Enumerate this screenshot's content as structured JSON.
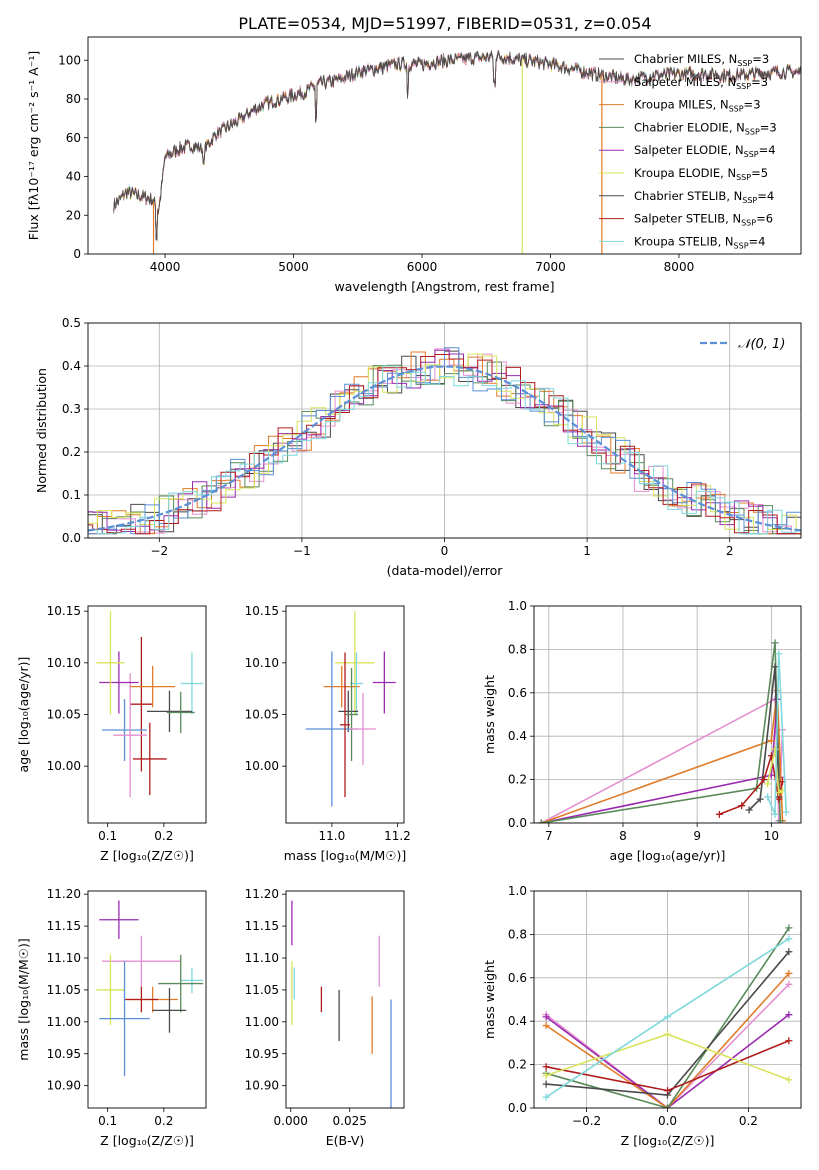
{
  "figure": {
    "title": "PLATE=0534, MJD=51997, FIBERID=0531, z=0.054"
  },
  "models": [
    {
      "name": "Chabrier MILES",
      "nssp": "3",
      "color": "#4a4a4a"
    },
    {
      "name": "Salpeter MILES",
      "nssp": "3",
      "color": "#e58fd0"
    },
    {
      "name": "Kroupa MILES",
      "nssp": "3",
      "color": "#e07b28"
    },
    {
      "name": "Chabrier ELODIE",
      "nssp": "3",
      "color": "#5a8a5a"
    },
    {
      "name": "Salpeter ELODIE",
      "nssp": "4",
      "color": "#9a2bb0"
    },
    {
      "name": "Kroupa ELODIE",
      "nssp": "5",
      "color": "#d8e35a"
    },
    {
      "name": "Chabrier STELIB",
      "nssp": "4",
      "color": "#4a4a4a"
    },
    {
      "name": "Salpeter STELIB",
      "nssp": "6",
      "color": "#b01c1c"
    },
    {
      "name": "Kroupa STELIB",
      "nssp": "4",
      "color": "#7fd8dc"
    }
  ],
  "chart_data": [
    {
      "id": "spectrum",
      "type": "line",
      "xlabel": "wavelength [Angstrom, rest frame]",
      "ylabel": "Flux [fλ10⁻¹⁷ erg cm⁻² s⁻¹ A⁻¹]",
      "xlim": [
        3400,
        8950
      ],
      "ylim": [
        0,
        112
      ],
      "xticks": [
        4000,
        5000,
        6000,
        7000,
        8000
      ],
      "yticks": [
        0,
        20,
        40,
        60,
        80,
        100
      ],
      "legend": "right",
      "grid": false,
      "continuum": {
        "x": [
          3600,
          3700,
          3800,
          3900,
          3950,
          4000,
          4100,
          4200,
          4300,
          4400,
          4500,
          4600,
          4700,
          4800,
          4900,
          5000,
          5100,
          5200,
          5300,
          5400,
          5500,
          5600,
          5800,
          6000,
          6200,
          6400,
          6600,
          6800,
          7000,
          7200,
          7400,
          7600,
          7800,
          8000,
          8200,
          8400,
          8600,
          8800,
          8950
        ],
        "y": [
          25,
          32,
          30,
          28,
          22,
          50,
          54,
          56,
          54,
          62,
          66,
          70,
          75,
          78,
          80,
          82,
          84,
          88,
          89,
          91,
          94,
          95,
          98,
          98,
          100,
          101,
          102,
          100,
          98,
          95,
          92,
          90,
          92,
          93,
          93,
          92,
          93,
          94,
          94
        ]
      },
      "dips": [
        {
          "x": 3933,
          "y": 5
        },
        {
          "x": 4300,
          "y": 40
        },
        {
          "x": 5175,
          "y": 65
        },
        {
          "x": 5890,
          "y": 80
        },
        {
          "x": 6565,
          "y": 85
        }
      ],
      "dropouts": [
        3910,
        6780,
        7400
      ]
    },
    {
      "id": "residuals",
      "type": "histogram",
      "xlabel": "(data-model)/error",
      "ylabel": "Normed distribution",
      "xlim": [
        -2.5,
        2.5
      ],
      "ylim": [
        0,
        0.5
      ],
      "xticks": [
        -2,
        -1,
        0,
        1,
        2
      ],
      "yticks": [
        0.0,
        0.1,
        0.2,
        0.3,
        0.4,
        0.5
      ],
      "grid": true,
      "legend": "top-right",
      "reference": {
        "label": "𝒩(0, 1)",
        "mean": 0,
        "sigma": 1,
        "color": "#5b8fd6"
      }
    },
    {
      "id": "age-vs-Z",
      "type": "scatter",
      "xlabel": "Z [log₁₀(Z/Z☉)]",
      "ylabel": "age  [log₁₀(age/yr)]",
      "xlim": [
        0.065,
        0.275
      ],
      "ylim": [
        9.945,
        10.155
      ],
      "xticks": [
        0.1,
        0.2
      ],
      "yticks": [
        10.0,
        10.05,
        10.1,
        10.15
      ],
      "points": [
        {
          "x": 0.16,
          "xerr": 0.02,
          "y": 10.06,
          "yerr": 0.065,
          "color": "#b01c1c"
        },
        {
          "x": 0.13,
          "xerr": 0.04,
          "y": 10.035,
          "yerr": 0.03,
          "color": "#5b8fd6"
        },
        {
          "x": 0.14,
          "xerr": 0.03,
          "y": 10.03,
          "yerr": 0.06,
          "color": "#e58fd0"
        },
        {
          "x": 0.25,
          "xerr": 0.02,
          "y": 10.08,
          "yerr": 0.03,
          "color": "#7fd8dc"
        },
        {
          "x": 0.21,
          "xerr": 0.04,
          "y": 10.053,
          "yerr": 0.02,
          "color": "#4a4a4a"
        },
        {
          "x": 0.23,
          "xerr": 0.025,
          "y": 10.052,
          "yerr": 0.02,
          "color": "#5a8a5a"
        },
        {
          "x": 0.12,
          "xerr": 0.035,
          "y": 10.081,
          "yerr": 0.03,
          "color": "#9a2bb0"
        },
        {
          "x": 0.105,
          "xerr": 0.025,
          "y": 10.1,
          "yerr": 0.05,
          "color": "#d8e35a"
        },
        {
          "x": 0.18,
          "xerr": 0.04,
          "y": 10.077,
          "yerr": 0.02,
          "color": "#e07b28"
        },
        {
          "x": 0.175,
          "xerr": 0.03,
          "y": 10.007,
          "yerr": 0.035,
          "color": "#b01c1c"
        }
      ]
    },
    {
      "id": "age-vs-mass",
      "type": "scatter",
      "xlabel": "mass [log₁₀(M/M☉)]",
      "ylabel": "",
      "xlim": [
        10.86,
        11.22
      ],
      "ylim": [
        9.945,
        10.155
      ],
      "xticks": [
        11.0,
        11.2
      ],
      "yticks": [
        10.0,
        10.05,
        10.1,
        10.15
      ],
      "points": [
        {
          "x": 11.07,
          "xerr": 0.06,
          "y": 10.1,
          "yerr": 0.05,
          "color": "#d8e35a"
        },
        {
          "x": 11.16,
          "xerr": 0.035,
          "y": 10.081,
          "yerr": 0.03,
          "color": "#9a2bb0"
        },
        {
          "x": 11.03,
          "xerr": 0.055,
          "y": 10.077,
          "yerr": 0.02,
          "color": "#e07b28"
        },
        {
          "x": 11.075,
          "xerr": 0.02,
          "y": 10.08,
          "yerr": 0.03,
          "color": "#7fd8dc"
        },
        {
          "x": 11.05,
          "xerr": 0.03,
          "y": 10.053,
          "yerr": 0.02,
          "color": "#4a4a4a"
        },
        {
          "x": 11.06,
          "xerr": 0.02,
          "y": 10.05,
          "yerr": 0.045,
          "color": "#5a8a5a"
        },
        {
          "x": 11.0,
          "xerr": 0.08,
          "y": 10.036,
          "yerr": 0.075,
          "color": "#5b8fd6"
        },
        {
          "x": 11.095,
          "xerr": 0.04,
          "y": 10.036,
          "yerr": 0.035,
          "color": "#e58fd0"
        },
        {
          "x": 11.04,
          "xerr": 0.015,
          "y": 10.04,
          "yerr": 0.07,
          "color": "#b01c1c"
        }
      ]
    },
    {
      "id": "weight-vs-age",
      "type": "line",
      "xlabel": "age  [log₁₀(age/yr)]",
      "ylabel": "mass weight",
      "xlim": [
        6.8,
        10.4
      ],
      "ylim": [
        0,
        1.0
      ],
      "xticks": [
        7,
        8,
        9,
        10
      ],
      "yticks": [
        0.0,
        0.2,
        0.4,
        0.6,
        0.8,
        1.0
      ],
      "grid": true,
      "series": [
        {
          "color": "#e58fd0",
          "x": [
            6.9,
            10.05,
            10.1,
            10.15
          ],
          "y": [
            0.0,
            0.57,
            0.01,
            0.43
          ]
        },
        {
          "color": "#9a2bb0",
          "x": [
            6.9,
            10.0,
            10.08,
            10.12
          ],
          "y": [
            0.0,
            0.22,
            0.57,
            0.21
          ]
        },
        {
          "color": "#e07b28",
          "x": [
            6.9,
            10.0,
            10.08,
            10.15
          ],
          "y": [
            0.0,
            0.38,
            0.61,
            0.01
          ]
        },
        {
          "color": "#5a8a5a",
          "x": [
            6.9,
            9.8,
            10.05,
            10.12
          ],
          "y": [
            0.0,
            0.16,
            0.83,
            0.01
          ]
        },
        {
          "color": "#4a4a4a",
          "x": [
            9.7,
            9.85,
            10.05,
            10.1
          ],
          "y": [
            0.06,
            0.11,
            0.72,
            0.12
          ]
        },
        {
          "color": "#b01c1c",
          "x": [
            9.3,
            9.6,
            9.9,
            10.0,
            10.1,
            10.15
          ],
          "y": [
            0.04,
            0.08,
            0.2,
            0.31,
            0.11,
            0.19
          ]
        },
        {
          "color": "#d8e35a",
          "x": [
            9.95,
            10.05,
            10.1,
            10.15
          ],
          "y": [
            0.18,
            0.34,
            0.14,
            0.15
          ]
        },
        {
          "color": "#7fd8dc",
          "x": [
            9.95,
            10.05,
            10.1,
            10.2
          ],
          "y": [
            0.12,
            0.04,
            0.78,
            0.05
          ]
        }
      ]
    },
    {
      "id": "mass-vs-Z",
      "type": "scatter",
      "xlabel": "Z [log₁₀(Z/Z☉)]",
      "ylabel": "mass [log₁₀(M/M☉)]",
      "xlim": [
        0.065,
        0.275
      ],
      "ylim": [
        10.865,
        11.205
      ],
      "xticks": [
        0.1,
        0.2
      ],
      "yticks": [
        10.9,
        10.95,
        11.0,
        11.05,
        11.1,
        11.15,
        11.2
      ],
      "points": [
        {
          "x": 0.12,
          "xerr": 0.035,
          "y": 11.16,
          "yerr": 0.03,
          "color": "#9a2bb0"
        },
        {
          "x": 0.16,
          "xerr": 0.07,
          "y": 11.095,
          "yerr": 0.04,
          "color": "#e58fd0"
        },
        {
          "x": 0.105,
          "xerr": 0.025,
          "y": 11.05,
          "yerr": 0.055,
          "color": "#d8e35a"
        },
        {
          "x": 0.25,
          "xerr": 0.02,
          "y": 11.065,
          "yerr": 0.02,
          "color": "#7fd8dc"
        },
        {
          "x": 0.23,
          "xerr": 0.04,
          "y": 11.06,
          "yerr": 0.045,
          "color": "#5a8a5a"
        },
        {
          "x": 0.18,
          "xerr": 0.045,
          "y": 11.035,
          "yerr": 0.02,
          "color": "#e07b28"
        },
        {
          "x": 0.16,
          "xerr": 0.03,
          "y": 11.035,
          "yerr": 0.02,
          "color": "#b01c1c"
        },
        {
          "x": 0.21,
          "xerr": 0.03,
          "y": 11.018,
          "yerr": 0.035,
          "color": "#4a4a4a"
        },
        {
          "x": 0.13,
          "xerr": 0.045,
          "y": 11.005,
          "yerr": 0.09,
          "color": "#5b8fd6"
        }
      ]
    },
    {
      "id": "mass-vs-ebv",
      "type": "scatter",
      "xlabel": "E(B-V)",
      "ylabel": "",
      "xlim": [
        -0.002,
        0.048
      ],
      "ylim": [
        10.865,
        11.205
      ],
      "xticks": [
        0.0,
        0.025
      ],
      "yticks": [
        10.9,
        10.95,
        11.0,
        11.05,
        11.1,
        11.15,
        11.2
      ],
      "points": [
        {
          "x": 0.0005,
          "xerr": 0,
          "y": 11.155,
          "yerr": 0.035,
          "color": "#9a2bb0"
        },
        {
          "x": 0.0005,
          "xerr": 0,
          "y": 11.045,
          "yerr": 0.05,
          "color": "#d8e35a"
        },
        {
          "x": 0.0015,
          "xerr": 0,
          "y": 11.06,
          "yerr": 0.025,
          "color": "#7fd8dc"
        },
        {
          "x": 0.013,
          "xerr": 0,
          "y": 11.035,
          "yerr": 0.02,
          "color": "#b01c1c"
        },
        {
          "x": 0.0205,
          "xerr": 0,
          "y": 11.01,
          "yerr": 0.04,
          "color": "#4a4a4a"
        },
        {
          "x": 0.0345,
          "xerr": 0,
          "y": 10.995,
          "yerr": 0.045,
          "color": "#e07b28"
        },
        {
          "x": 0.0375,
          "xerr": 0,
          "y": 11.095,
          "yerr": 0.04,
          "color": "#e58fd0"
        },
        {
          "x": 0.0425,
          "xerr": 0,
          "y": 10.95,
          "yerr": 0.085,
          "color": "#5b8fd6"
        }
      ]
    },
    {
      "id": "weight-vs-Z",
      "type": "line",
      "xlabel": "Z [log₁₀(Z/Z☉)]",
      "ylabel": "mass weight",
      "xlim": [
        -0.33,
        0.33
      ],
      "ylim": [
        0,
        1.0
      ],
      "xticks": [
        -0.2,
        0.0,
        0.2
      ],
      "yticks": [
        0.0,
        0.2,
        0.4,
        0.6,
        0.8,
        1.0
      ],
      "grid": true,
      "series": [
        {
          "color": "#e58fd0",
          "x": [
            -0.3,
            0.0,
            0.3
          ],
          "y": [
            0.43,
            0.0,
            0.57
          ]
        },
        {
          "color": "#9a2bb0",
          "x": [
            -0.3,
            0.0,
            0.3
          ],
          "y": [
            0.42,
            0.0,
            0.43
          ]
        },
        {
          "color": "#e07b28",
          "x": [
            -0.3,
            0.0,
            0.3
          ],
          "y": [
            0.38,
            0.0,
            0.62
          ]
        },
        {
          "color": "#5a8a5a",
          "x": [
            -0.3,
            0.0,
            0.3
          ],
          "y": [
            0.16,
            0.0,
            0.83
          ]
        },
        {
          "color": "#4a4a4a",
          "x": [
            -0.3,
            0.0,
            0.3
          ],
          "y": [
            0.11,
            0.06,
            0.72
          ]
        },
        {
          "color": "#b01c1c",
          "x": [
            -0.3,
            0.0,
            0.3
          ],
          "y": [
            0.19,
            0.08,
            0.31
          ]
        },
        {
          "color": "#d8e35a",
          "x": [
            -0.3,
            0.0,
            0.3
          ],
          "y": [
            0.15,
            0.34,
            0.13
          ]
        },
        {
          "color": "#7fd8dc",
          "x": [
            -0.3,
            0.0,
            0.3
          ],
          "y": [
            0.05,
            0.42,
            0.78
          ]
        }
      ]
    }
  ]
}
